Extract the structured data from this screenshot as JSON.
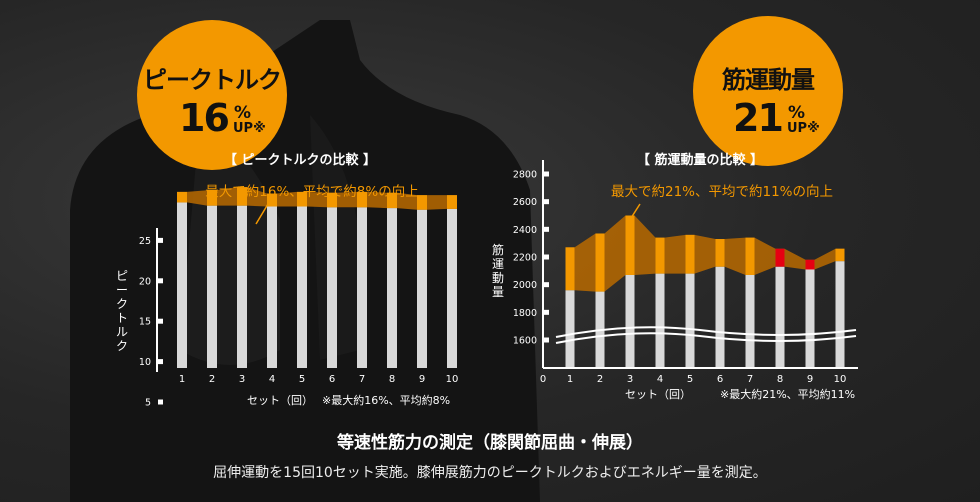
{
  "badge_left": {
    "title": "ピークトルク",
    "number": "16",
    "pct": "%",
    "up": "UP※"
  },
  "badge_right": {
    "title": "筋運動量",
    "number": "21",
    "pct": "%",
    "up": "UP※"
  },
  "caption_title": "等速性筋力の測定（膝関節屈曲・伸展）",
  "caption_text": "屈伸運動を15回10セット実施。膝伸展筋力のピークトルクおよびエネルギー量を測定。",
  "colors": {
    "accent": "#f39800",
    "peak": "#e60012",
    "bar": "#d9d9d9",
    "band": "#b86a00"
  },
  "chart_data": [
    {
      "type": "bar",
      "subtitle": "【 ピークトルクの比較 】",
      "annotation": "最大で約16%、平均で約8%の向上",
      "ylabel": "ピークトルク",
      "xlabel": "セット（回）",
      "note": "※最大約16%、平均約8%",
      "ylim": [
        5,
        30
      ],
      "yticks": [
        "5",
        "10",
        "15",
        "20",
        "25"
      ],
      "categories": [
        "1",
        "2",
        "3",
        "4",
        "5",
        "6",
        "7",
        "8",
        "9",
        "10"
      ],
      "series": [
        {
          "values": [
            29.7,
            29.3,
            29.3,
            29.2,
            29.2,
            29.1,
            29.1,
            29.0,
            28.8,
            28.9
          ]
        },
        {
          "values": [
            31.0,
            31.2,
            31.6,
            30.8,
            31.0,
            30.9,
            31.0,
            30.9,
            30.6,
            30.6
          ]
        }
      ]
    },
    {
      "type": "bar",
      "subtitle": "【 筋運動量の比較 】",
      "annotation": "最大で約21%、平均で約11%の向上",
      "ylabel": "筋運動量",
      "xlabel": "セット（回）",
      "note": "※最大約21%、平均約11%",
      "ylim": [
        1500,
        2850
      ],
      "yticks": [
        "1600",
        "1800",
        "2000",
        "2200",
        "2400",
        "2600",
        "2800"
      ],
      "xzero": "0",
      "categories": [
        "1",
        "2",
        "3",
        "4",
        "5",
        "6",
        "7",
        "8",
        "9",
        "10"
      ],
      "series": [
        {
          "values": [
            1960,
            1950,
            2070,
            2080,
            2080,
            2130,
            2070,
            2130,
            2110,
            2170
          ]
        },
        {
          "values": [
            2270,
            2370,
            2500,
            2340,
            2360,
            2330,
            2340,
            2260,
            2180,
            2260
          ]
        }
      ],
      "highlight_categories": [
        "8",
        "9"
      ]
    }
  ]
}
